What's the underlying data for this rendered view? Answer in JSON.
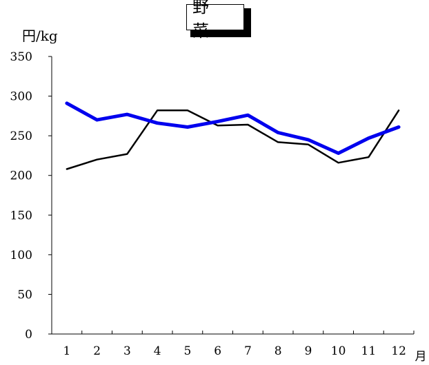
{
  "chart_data": {
    "type": "line",
    "title": "野 菜",
    "ylabel": "円/kg",
    "xlabel": "月",
    "categories": [
      "1",
      "2",
      "3",
      "4",
      "5",
      "6",
      "7",
      "8",
      "9",
      "10",
      "11",
      "12"
    ],
    "yticks": [
      "0",
      "50",
      "100",
      "150",
      "200",
      "250",
      "300",
      "350"
    ],
    "ylim": [
      0,
      350
    ],
    "grid": false,
    "series": [
      {
        "color": "#000000",
        "values": [
          208,
          220,
          227,
          282,
          282,
          263,
          264,
          242,
          239,
          216,
          223,
          282
        ]
      },
      {
        "color": "#0000ee",
        "values": [
          291,
          270,
          277,
          266,
          261,
          268,
          276,
          254,
          245,
          228,
          247,
          261
        ]
      }
    ]
  }
}
